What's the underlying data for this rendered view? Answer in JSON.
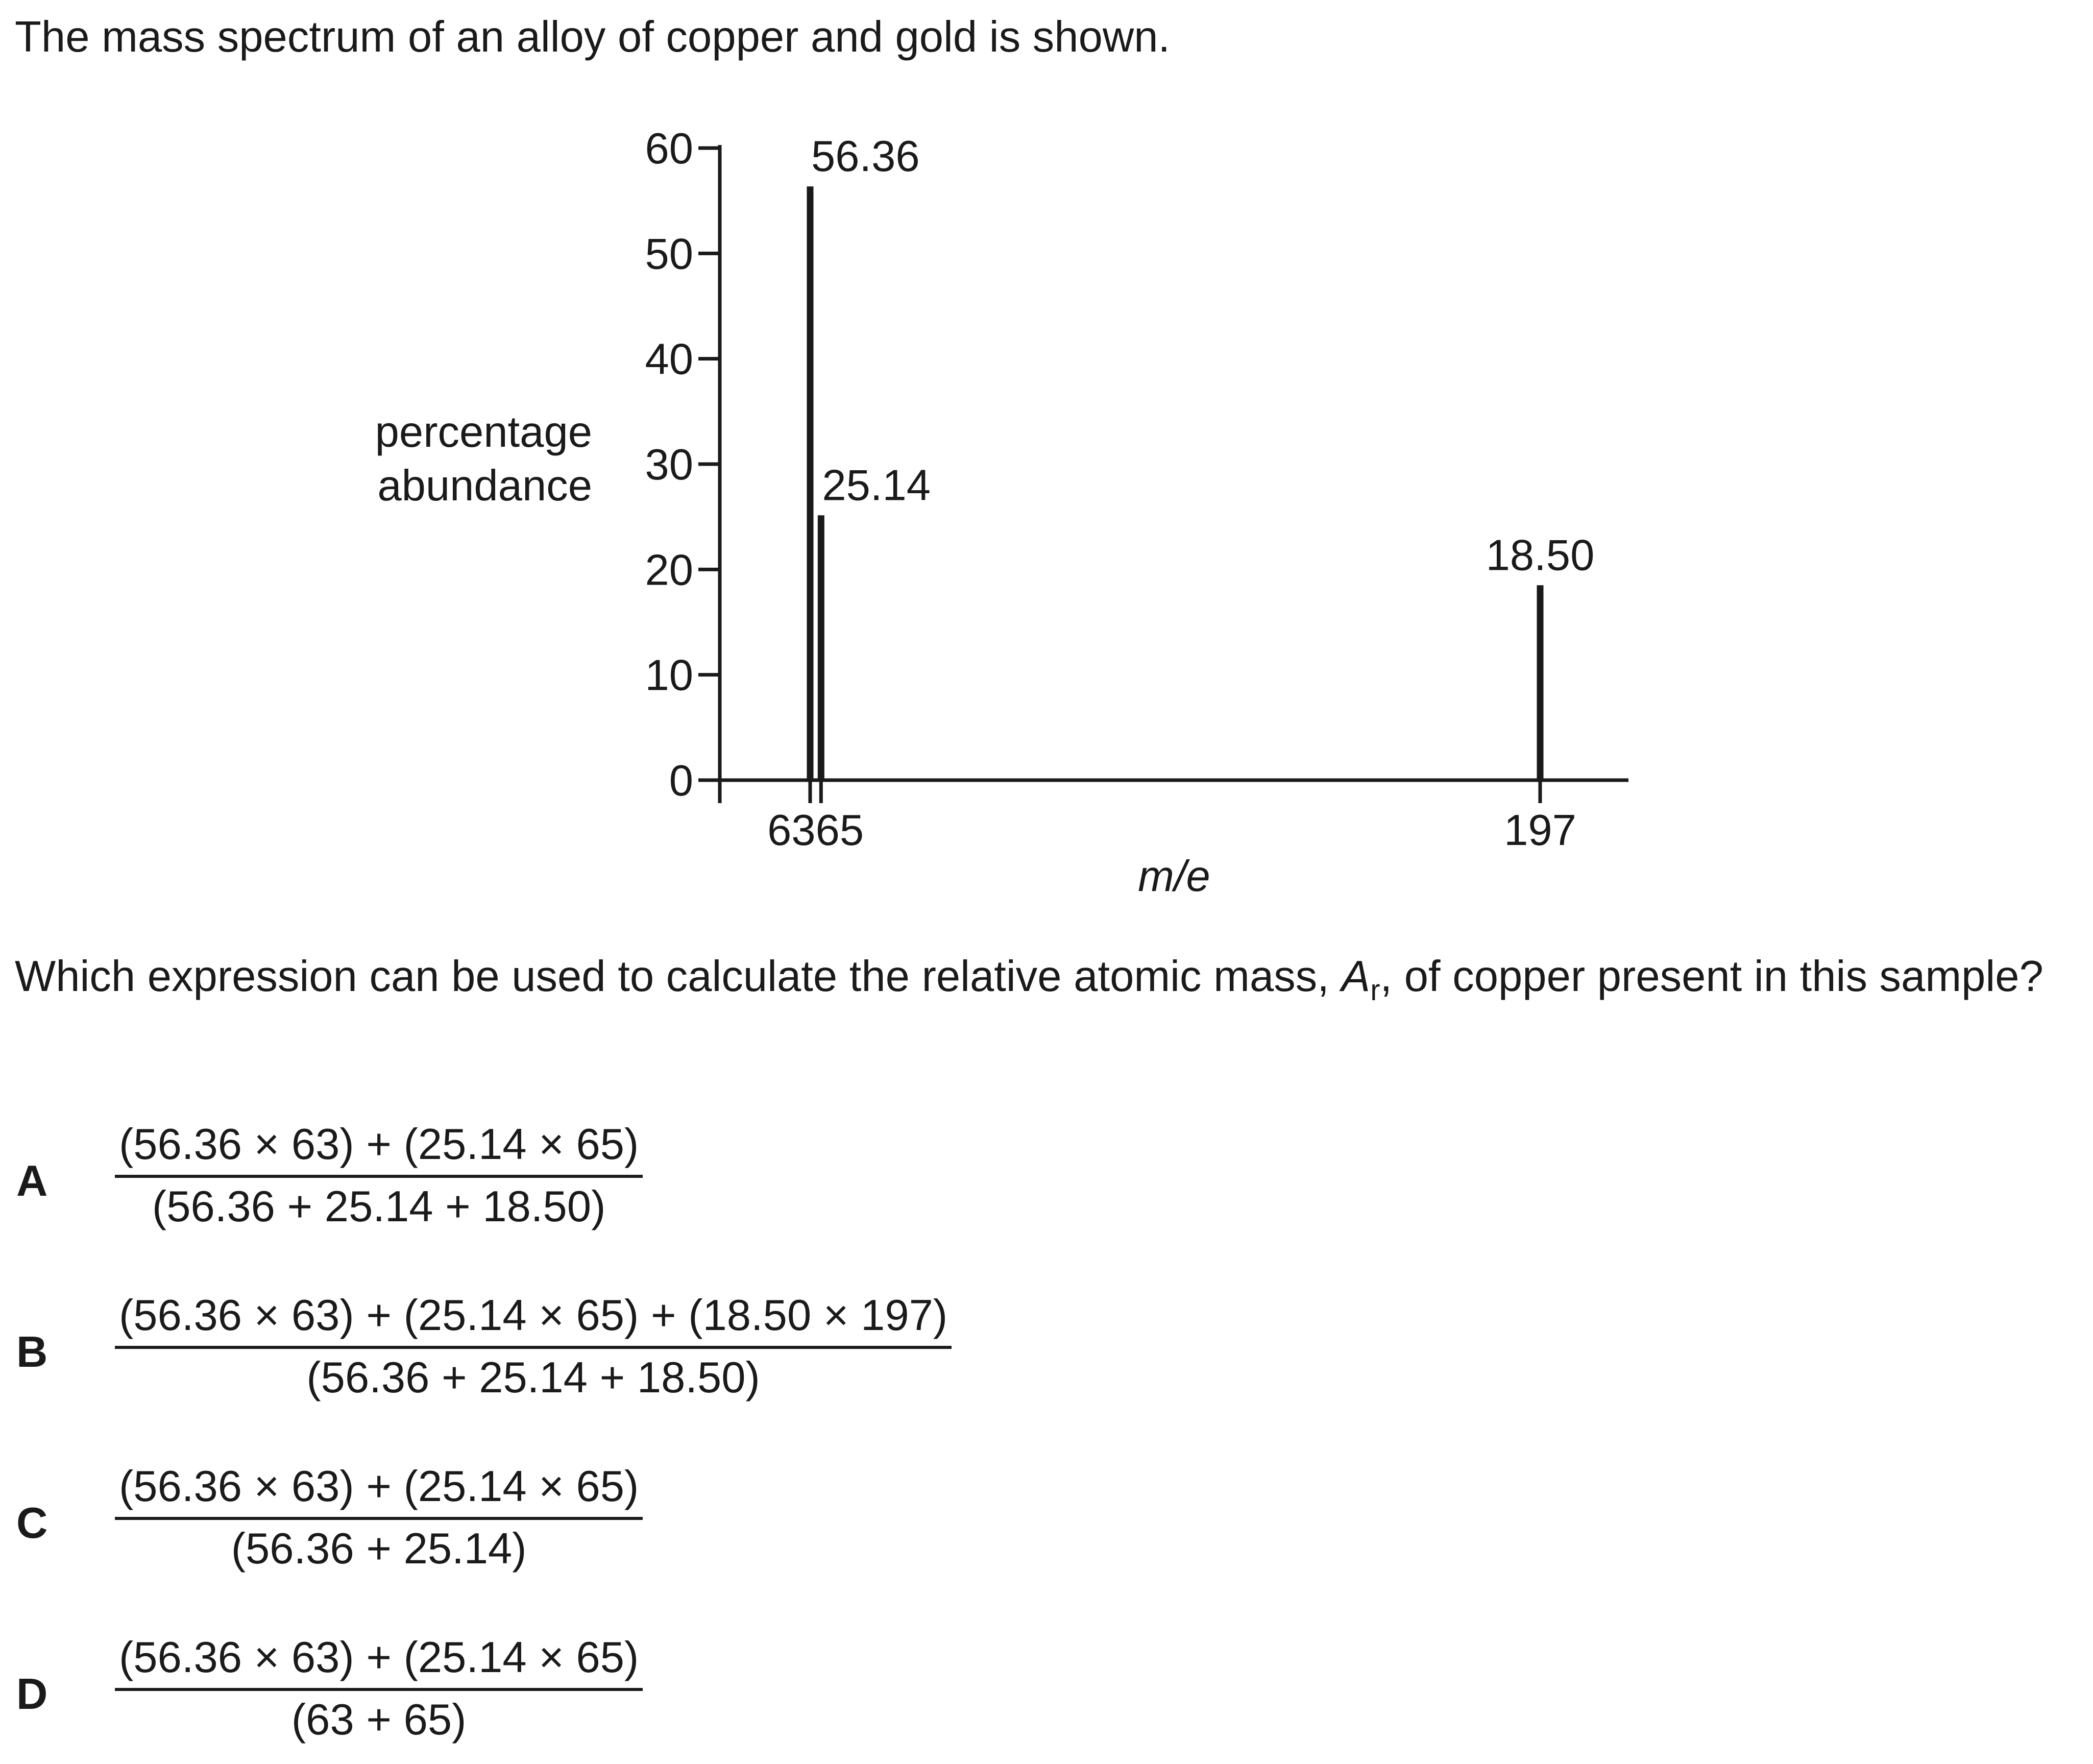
{
  "intro": "The mass spectrum of an alloy of copper and gold is shown.",
  "chart_data": {
    "type": "bar",
    "x": [
      63,
      65,
      197
    ],
    "values": [
      56.36,
      25.14,
      18.5
    ],
    "data_labels": [
      "56.36",
      "25.14",
      "18.50"
    ],
    "xticks": [
      "63",
      "65",
      "197"
    ],
    "yticks": [
      "0",
      "10",
      "20",
      "30",
      "40",
      "50",
      "60"
    ],
    "xlabel": "m/e",
    "ylabel": "percentage abundance",
    "ylabel_lines": [
      "percentage",
      "abundance"
    ],
    "ylim": [
      0,
      60
    ],
    "grid": false
  },
  "question": {
    "before": "Which expression can be used to calculate the relative atomic mass, ",
    "symbol": "A",
    "subscript": "r",
    "after": ", of copper present in this sample?"
  },
  "options": [
    {
      "letter": "A",
      "numerator": "(56.36 × 63) + (25.14 × 65)",
      "denominator": "(56.36 + 25.14 + 18.50)"
    },
    {
      "letter": "B",
      "numerator": "(56.36 × 63) + (25.14 × 65) + (18.50 × 197)",
      "denominator": "(56.36 + 25.14 + 18.50)"
    },
    {
      "letter": "C",
      "numerator": "(56.36 × 63) + (25.14 × 65)",
      "denominator": "(56.36 + 25.14)"
    },
    {
      "letter": "D",
      "numerator": "(56.36 × 63) + (25.14 × 65)",
      "denominator": "(63 + 65)"
    }
  ]
}
